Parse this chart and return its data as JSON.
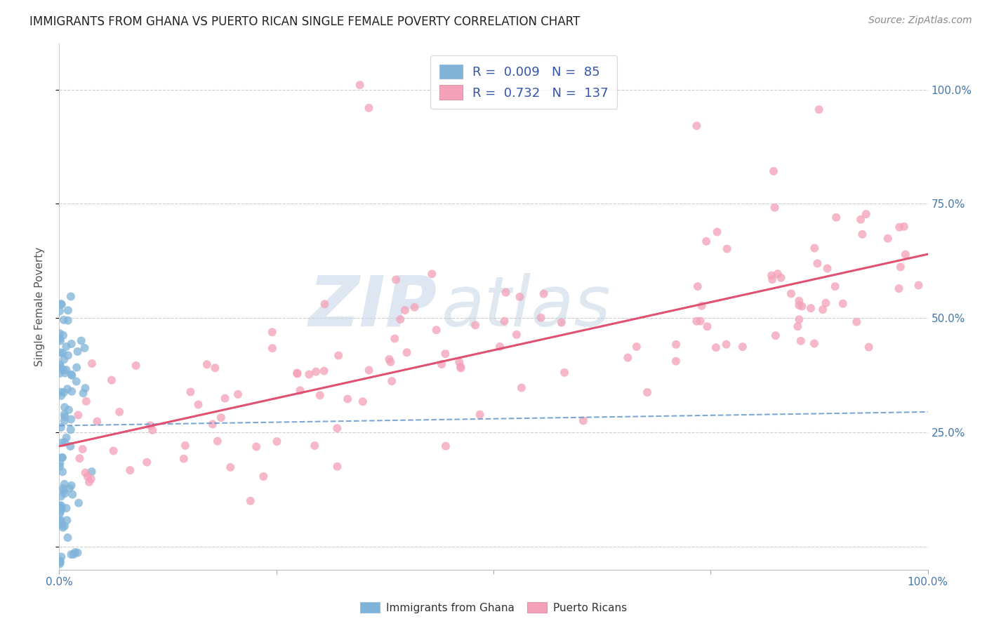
{
  "title": "IMMIGRANTS FROM GHANA VS PUERTO RICAN SINGLE FEMALE POVERTY CORRELATION CHART",
  "source": "Source: ZipAtlas.com",
  "ylabel": "Single Female Poverty",
  "xlim": [
    0.0,
    1.0
  ],
  "ylim": [
    -0.05,
    1.1
  ],
  "ghana_color": "#7fb3d8",
  "puerto_rico_color": "#f4a0b8",
  "ghana_R": 0.009,
  "ghana_N": 85,
  "puerto_rico_R": 0.732,
  "puerto_rico_N": 137,
  "ghana_line_color": "#6699cc",
  "puerto_rico_line_color": "#e05070",
  "legend_text_color": "#3355aa",
  "watermark_zip": "ZIP",
  "watermark_atlas": "atlas",
  "background_color": "#ffffff",
  "title_fontsize": 12,
  "source_fontsize": 10,
  "legend_fontsize": 13,
  "ylabel_fontsize": 11,
  "tick_fontsize": 11
}
